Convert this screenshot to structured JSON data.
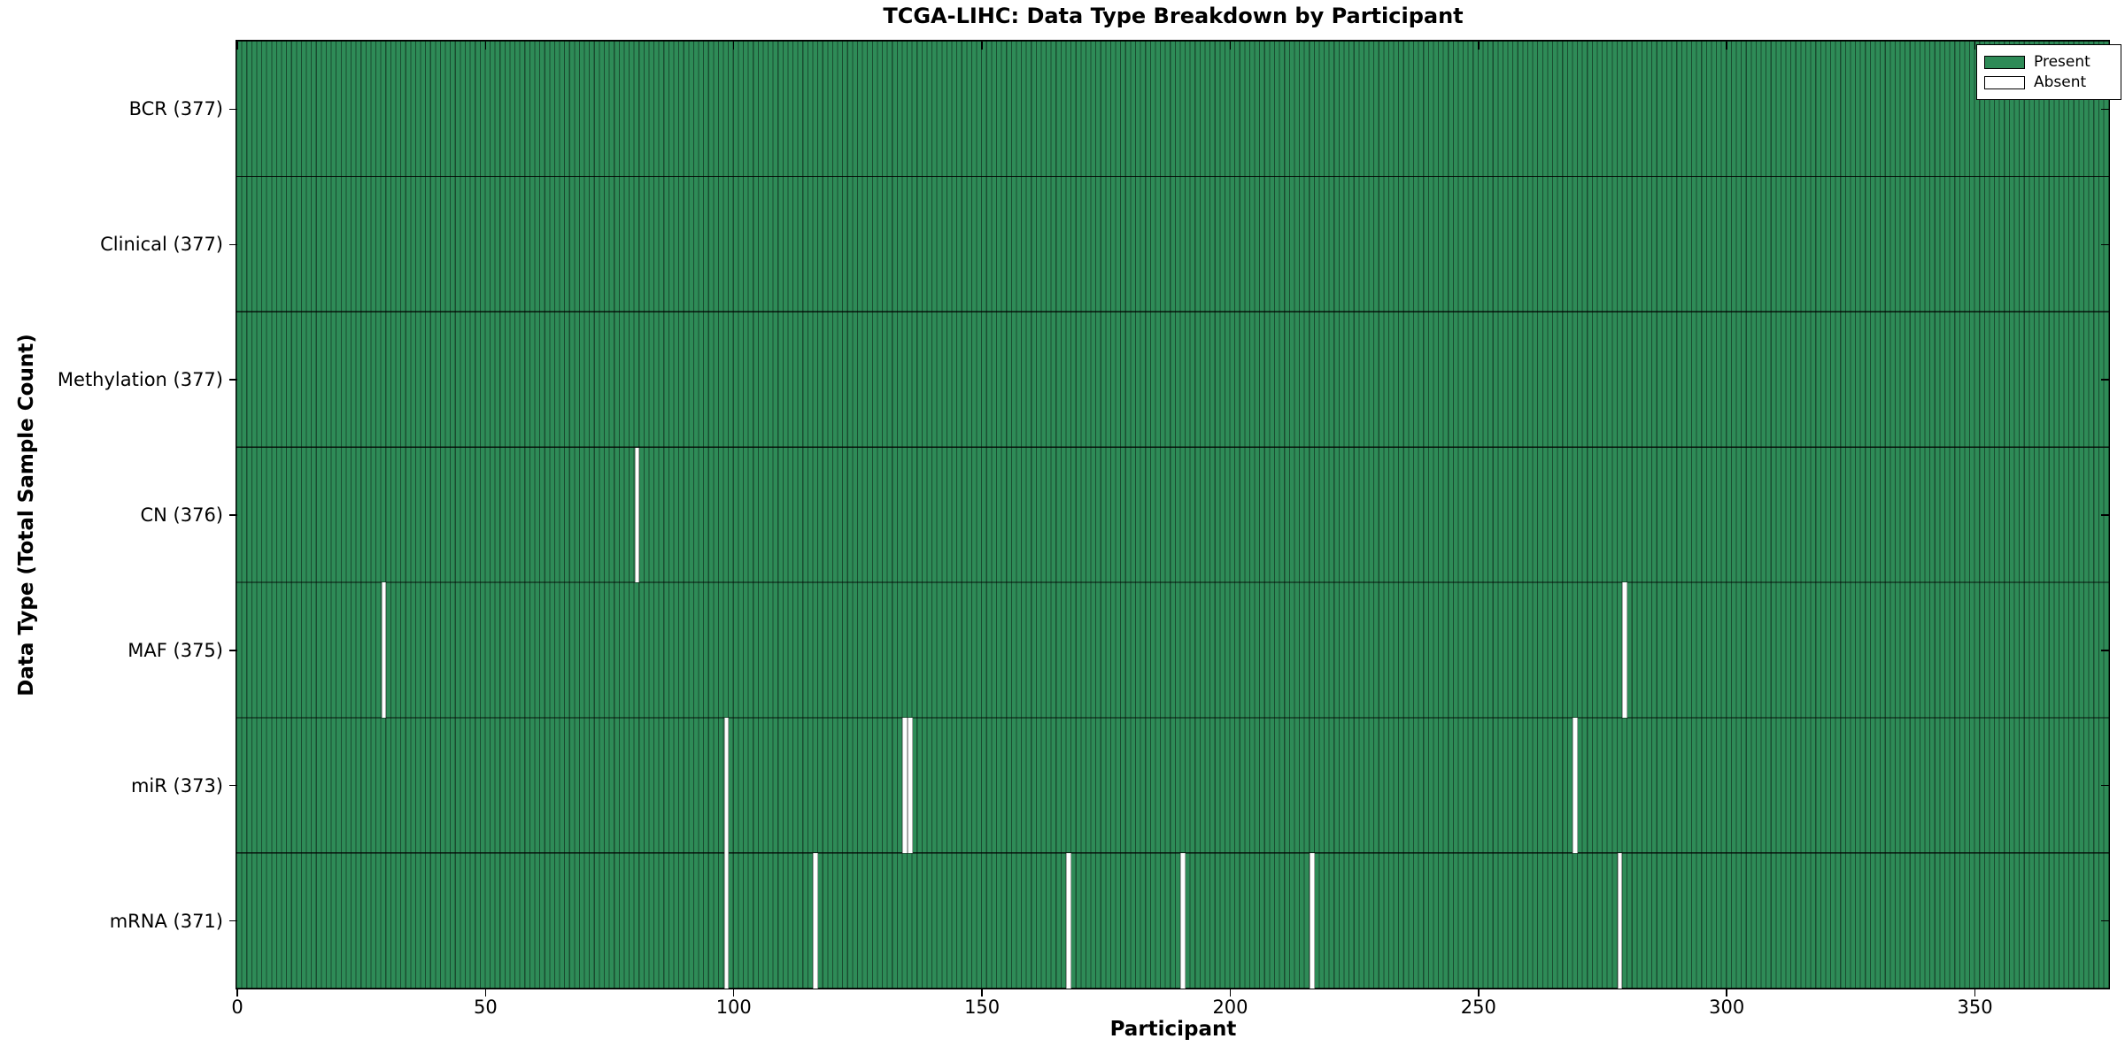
{
  "title": "TCGA-LIHC: Data Type Breakdown by Participant",
  "xlabel": "Participant",
  "ylabel": "Data Type (Total Sample Count)",
  "legend": {
    "present_label": "Present",
    "absent_label": "Absent"
  },
  "colors": {
    "present": "#2E8B57",
    "absent": "#FFFFFF",
    "edge": "#000000"
  },
  "chart_data": {
    "type": "heatmap",
    "title": "TCGA-LIHC: Data Type Breakdown by Participant",
    "xlabel": "Participant",
    "ylabel": "Data Type (Total Sample Count)",
    "legend_entries": [
      "Present",
      "Absent"
    ],
    "legend_position": "upper right",
    "grid": false,
    "n_participants": 377,
    "xlim": [
      0,
      377
    ],
    "x_ticks": [
      0,
      50,
      100,
      150,
      200,
      250,
      300,
      350
    ],
    "rows": [
      {
        "label": "BCR (377)",
        "data_type": "BCR",
        "total_samples": 377,
        "absent_participants": []
      },
      {
        "label": "Clinical (377)",
        "data_type": "Clinical",
        "total_samples": 377,
        "absent_participants": []
      },
      {
        "label": "Methylation (377)",
        "data_type": "Methylation",
        "total_samples": 377,
        "absent_participants": []
      },
      {
        "label": "CN (376)",
        "data_type": "CN",
        "total_samples": 376,
        "absent_participants": [
          80
        ]
      },
      {
        "label": "MAF (375)",
        "data_type": "MAF",
        "total_samples": 375,
        "absent_participants": [
          29,
          279
        ]
      },
      {
        "label": "miR (373)",
        "data_type": "miR",
        "total_samples": 373,
        "absent_participants": [
          98,
          134,
          135,
          269
        ]
      },
      {
        "label": "mRNA (371)",
        "data_type": "mRNA",
        "total_samples": 371,
        "absent_participants": [
          98,
          116,
          167,
          190,
          216,
          278
        ]
      }
    ]
  }
}
